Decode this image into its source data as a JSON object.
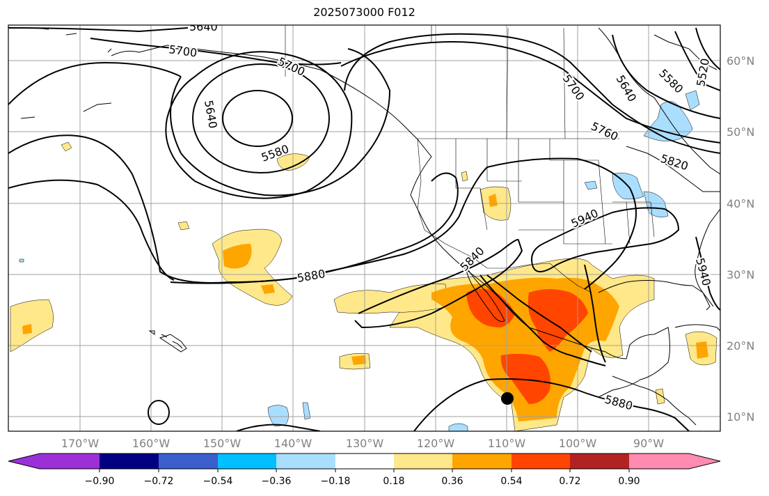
{
  "title": "2025073000 F012",
  "lon_labels": [
    "170°W",
    "160°W",
    "150°W",
    "140°W",
    "130°W",
    "120°W",
    "110°W",
    "100°W",
    "90°W"
  ],
  "lat_labels": [
    "10°N",
    "20°N",
    "30°N",
    "40°N",
    "50°N",
    "60°N"
  ],
  "contour_labels": [
    "5640",
    "5700",
    "5700",
    "5640",
    "5580",
    "5700",
    "5640",
    "5580",
    "5520",
    "5760",
    "5820",
    "5940",
    "5840",
    "5880",
    "5940",
    "5880"
  ],
  "colorbar": {
    "ticks": [
      "−0.90",
      "−0.72",
      "−0.54",
      "−0.36",
      "−0.18",
      "0.18",
      "0.36",
      "0.54",
      "0.72",
      "0.90"
    ],
    "colors": [
      "#9b30d9",
      "#000080",
      "#3a5fcd",
      "#00bfff",
      "#aadeff",
      "#ffffff",
      "#ffe88a",
      "#ffa500",
      "#ff4500",
      "#b22222",
      "#ff8bb0"
    ]
  },
  "fill_colors": {
    "light_blue": "#aadeff",
    "yellow": "#ffe88a",
    "orange": "#ffa500",
    "red": "#ff4500"
  }
}
